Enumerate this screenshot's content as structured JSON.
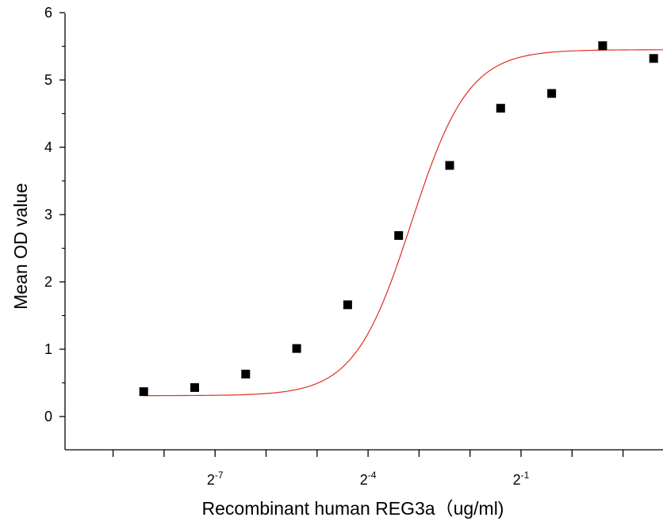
{
  "chart_data": {
    "type": "scatter",
    "title": "",
    "xlabel": "Recombinant human  REG3a（ug/ml)",
    "ylabel": "Mean OD value",
    "x_scale": "log2",
    "xlim_log2": [
      -10,
      1
    ],
    "ylim": [
      -0.5,
      6
    ],
    "y_ticks": [
      0,
      1,
      2,
      3,
      4,
      5,
      6
    ],
    "x_ticks_labeled": [
      {
        "base": "2",
        "exp": "-7",
        "log2": -7
      },
      {
        "base": "2",
        "exp": "-4",
        "log2": -4
      },
      {
        "base": "2",
        "exp": "-1",
        "log2": -1
      }
    ],
    "x_ticks_minor_log2": [
      -9,
      -8,
      -6,
      -5,
      -3,
      -2,
      0,
      1
    ],
    "series": [
      {
        "marker": "square",
        "color": "#000000",
        "points": [
          {
            "x_log2": -8.4,
            "y": 0.37
          },
          {
            "x_log2": -7.4,
            "y": 0.43
          },
          {
            "x_log2": -6.4,
            "y": 0.63
          },
          {
            "x_log2": -5.4,
            "y": 1.01
          },
          {
            "x_log2": -4.4,
            "y": 1.66
          },
          {
            "x_log2": -3.4,
            "y": 2.69
          },
          {
            "x_log2": -2.4,
            "y": 3.73
          },
          {
            "x_log2": -1.4,
            "y": 4.58
          },
          {
            "x_log2": -0.4,
            "y": 4.8
          },
          {
            "x_log2": 0.6,
            "y": 5.51
          },
          {
            "x_log2": 1.6,
            "y": 5.32
          }
        ]
      }
    ],
    "fit": {
      "color": "#e0301e",
      "model": "4PL",
      "bottom": 0.31,
      "top": 5.45,
      "x50_log2": -3.15,
      "slope_log2": 0.56
    },
    "grid": false,
    "legend": "none"
  }
}
